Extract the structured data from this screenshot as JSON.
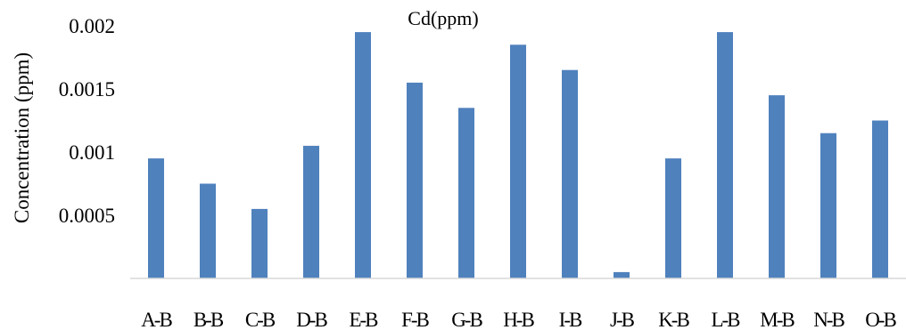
{
  "chart_data": {
    "type": "bar",
    "title": "Cd(ppm)",
    "xlabel": "",
    "ylabel": "Concentration (ppm)",
    "categories": [
      "A-B",
      "B-B",
      "C-B",
      "D-B",
      "E-B",
      "F-B",
      "G-B",
      "H-B",
      "I-B",
      "J-B",
      "K-B",
      "L-B",
      "M-B",
      "N-B",
      "O-B"
    ],
    "series": [
      {
        "values": [
          0.00095,
          0.00075,
          0.00055,
          0.00105,
          0.00195,
          0.00155,
          0.00135,
          0.00185,
          0.00165,
          5e-05,
          0.00095,
          0.00195,
          0.00145,
          0.00115,
          0.00125
        ]
      }
    ],
    "ylim": [
      0,
      0.002
    ],
    "yticks": [
      "0.0005",
      "0.001",
      "0.0015",
      "0.002"
    ],
    "ytick_values": [
      0.0005,
      0.001,
      0.0015,
      0.002
    ],
    "grid": false,
    "legend": "none",
    "colors": {
      "bar": "#4f81bd",
      "axis": "#d9d9d9",
      "text": "#000000"
    }
  }
}
